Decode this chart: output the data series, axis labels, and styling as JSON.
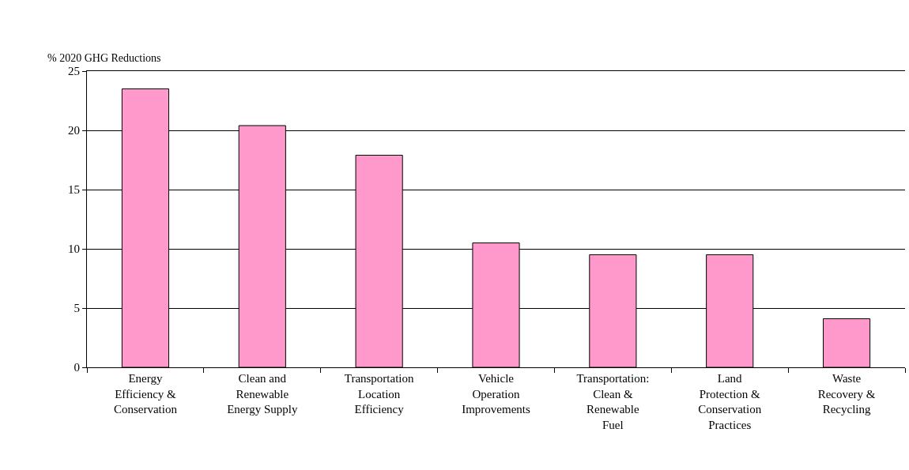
{
  "chart_data": {
    "type": "bar",
    "ylabel": "% 2020 GHG Reductions",
    "categories": [
      "Energy Efficiency & Conservation",
      "Clean and Renewable Energy Supply",
      "Transportation Location Efficiency",
      "Vehicle Operation Improvements",
      "Transportation: Clean & Renewable Fuel",
      "Land Protection & Conservation Practices",
      "Waste Recovery & Recycling"
    ],
    "values": [
      23.5,
      20.4,
      17.9,
      10.5,
      9.5,
      9.5,
      4.1
    ],
    "color": "#ff99cc",
    "ylim": [
      0,
      25
    ],
    "yticks": [
      0,
      5,
      10,
      15,
      20,
      25
    ],
    "grid": "y"
  }
}
